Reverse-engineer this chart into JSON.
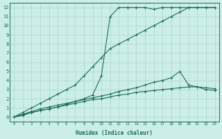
{
  "background_color": "#cceee8",
  "grid_color": "#aad4cc",
  "line_color": "#1a6b5a",
  "xlabel": "Humidex (Indice chaleur)",
  "xlim": [
    -0.5,
    23.5
  ],
  "ylim": [
    -0.5,
    12.5
  ],
  "xticks": [
    0,
    1,
    2,
    3,
    4,
    5,
    6,
    7,
    8,
    9,
    10,
    11,
    12,
    13,
    14,
    15,
    16,
    17,
    18,
    19,
    20,
    21,
    22,
    23
  ],
  "yticks": [
    0,
    1,
    2,
    3,
    4,
    5,
    6,
    7,
    8,
    9,
    10,
    11,
    12
  ],
  "series": [
    {
      "x": [
        0,
        1,
        2,
        3,
        4,
        5,
        6,
        7,
        8,
        9,
        10,
        11,
        12,
        13,
        14,
        15,
        16,
        17,
        18,
        19,
        20,
        21,
        22,
        23
      ],
      "y": [
        0.0,
        0.2,
        0.5,
        0.7,
        0.9,
        1.1,
        1.4,
        1.7,
        2.0,
        2.4,
        4.5,
        11.0,
        12.0,
        12.0,
        12.0,
        12.0,
        11.8,
        12.0,
        12.0,
        12.0,
        12.0,
        12.0,
        12.0,
        12.0
      ]
    },
    {
      "x": [
        0,
        1,
        2,
        3,
        4,
        5,
        6,
        7,
        8,
        9,
        10,
        11,
        12,
        13,
        14,
        15,
        16,
        17,
        18,
        19,
        20,
        21,
        22,
        23
      ],
      "y": [
        0.0,
        0.5,
        1.0,
        1.5,
        2.0,
        2.5,
        3.0,
        3.5,
        4.5,
        5.5,
        6.5,
        7.5,
        8.0,
        8.5,
        9.0,
        9.5,
        10.0,
        10.5,
        11.0,
        11.5,
        12.0,
        12.0,
        12.0,
        12.0
      ]
    },
    {
      "x": [
        0,
        1,
        2,
        3,
        4,
        5,
        6,
        7,
        8,
        9,
        10,
        11,
        12,
        13,
        14,
        15,
        16,
        17,
        18,
        19,
        20,
        21,
        22,
        23
      ],
      "y": [
        0.0,
        0.3,
        0.6,
        0.9,
        1.1,
        1.3,
        1.5,
        1.7,
        1.9,
        2.1,
        2.3,
        2.5,
        2.8,
        3.0,
        3.2,
        3.5,
        3.8,
        4.0,
        4.3,
        5.0,
        3.5,
        3.3,
        3.2,
        3.1
      ]
    },
    {
      "x": [
        0,
        1,
        2,
        3,
        4,
        5,
        6,
        7,
        8,
        9,
        10,
        11,
        12,
        13,
        14,
        15,
        16,
        17,
        18,
        19,
        20,
        21,
        22,
        23
      ],
      "y": [
        0.0,
        0.2,
        0.5,
        0.7,
        0.9,
        1.1,
        1.3,
        1.5,
        1.7,
        1.9,
        2.0,
        2.2,
        2.4,
        2.5,
        2.7,
        2.8,
        2.9,
        3.0,
        3.1,
        3.2,
        3.3,
        3.3,
        3.0,
        2.9
      ]
    }
  ]
}
